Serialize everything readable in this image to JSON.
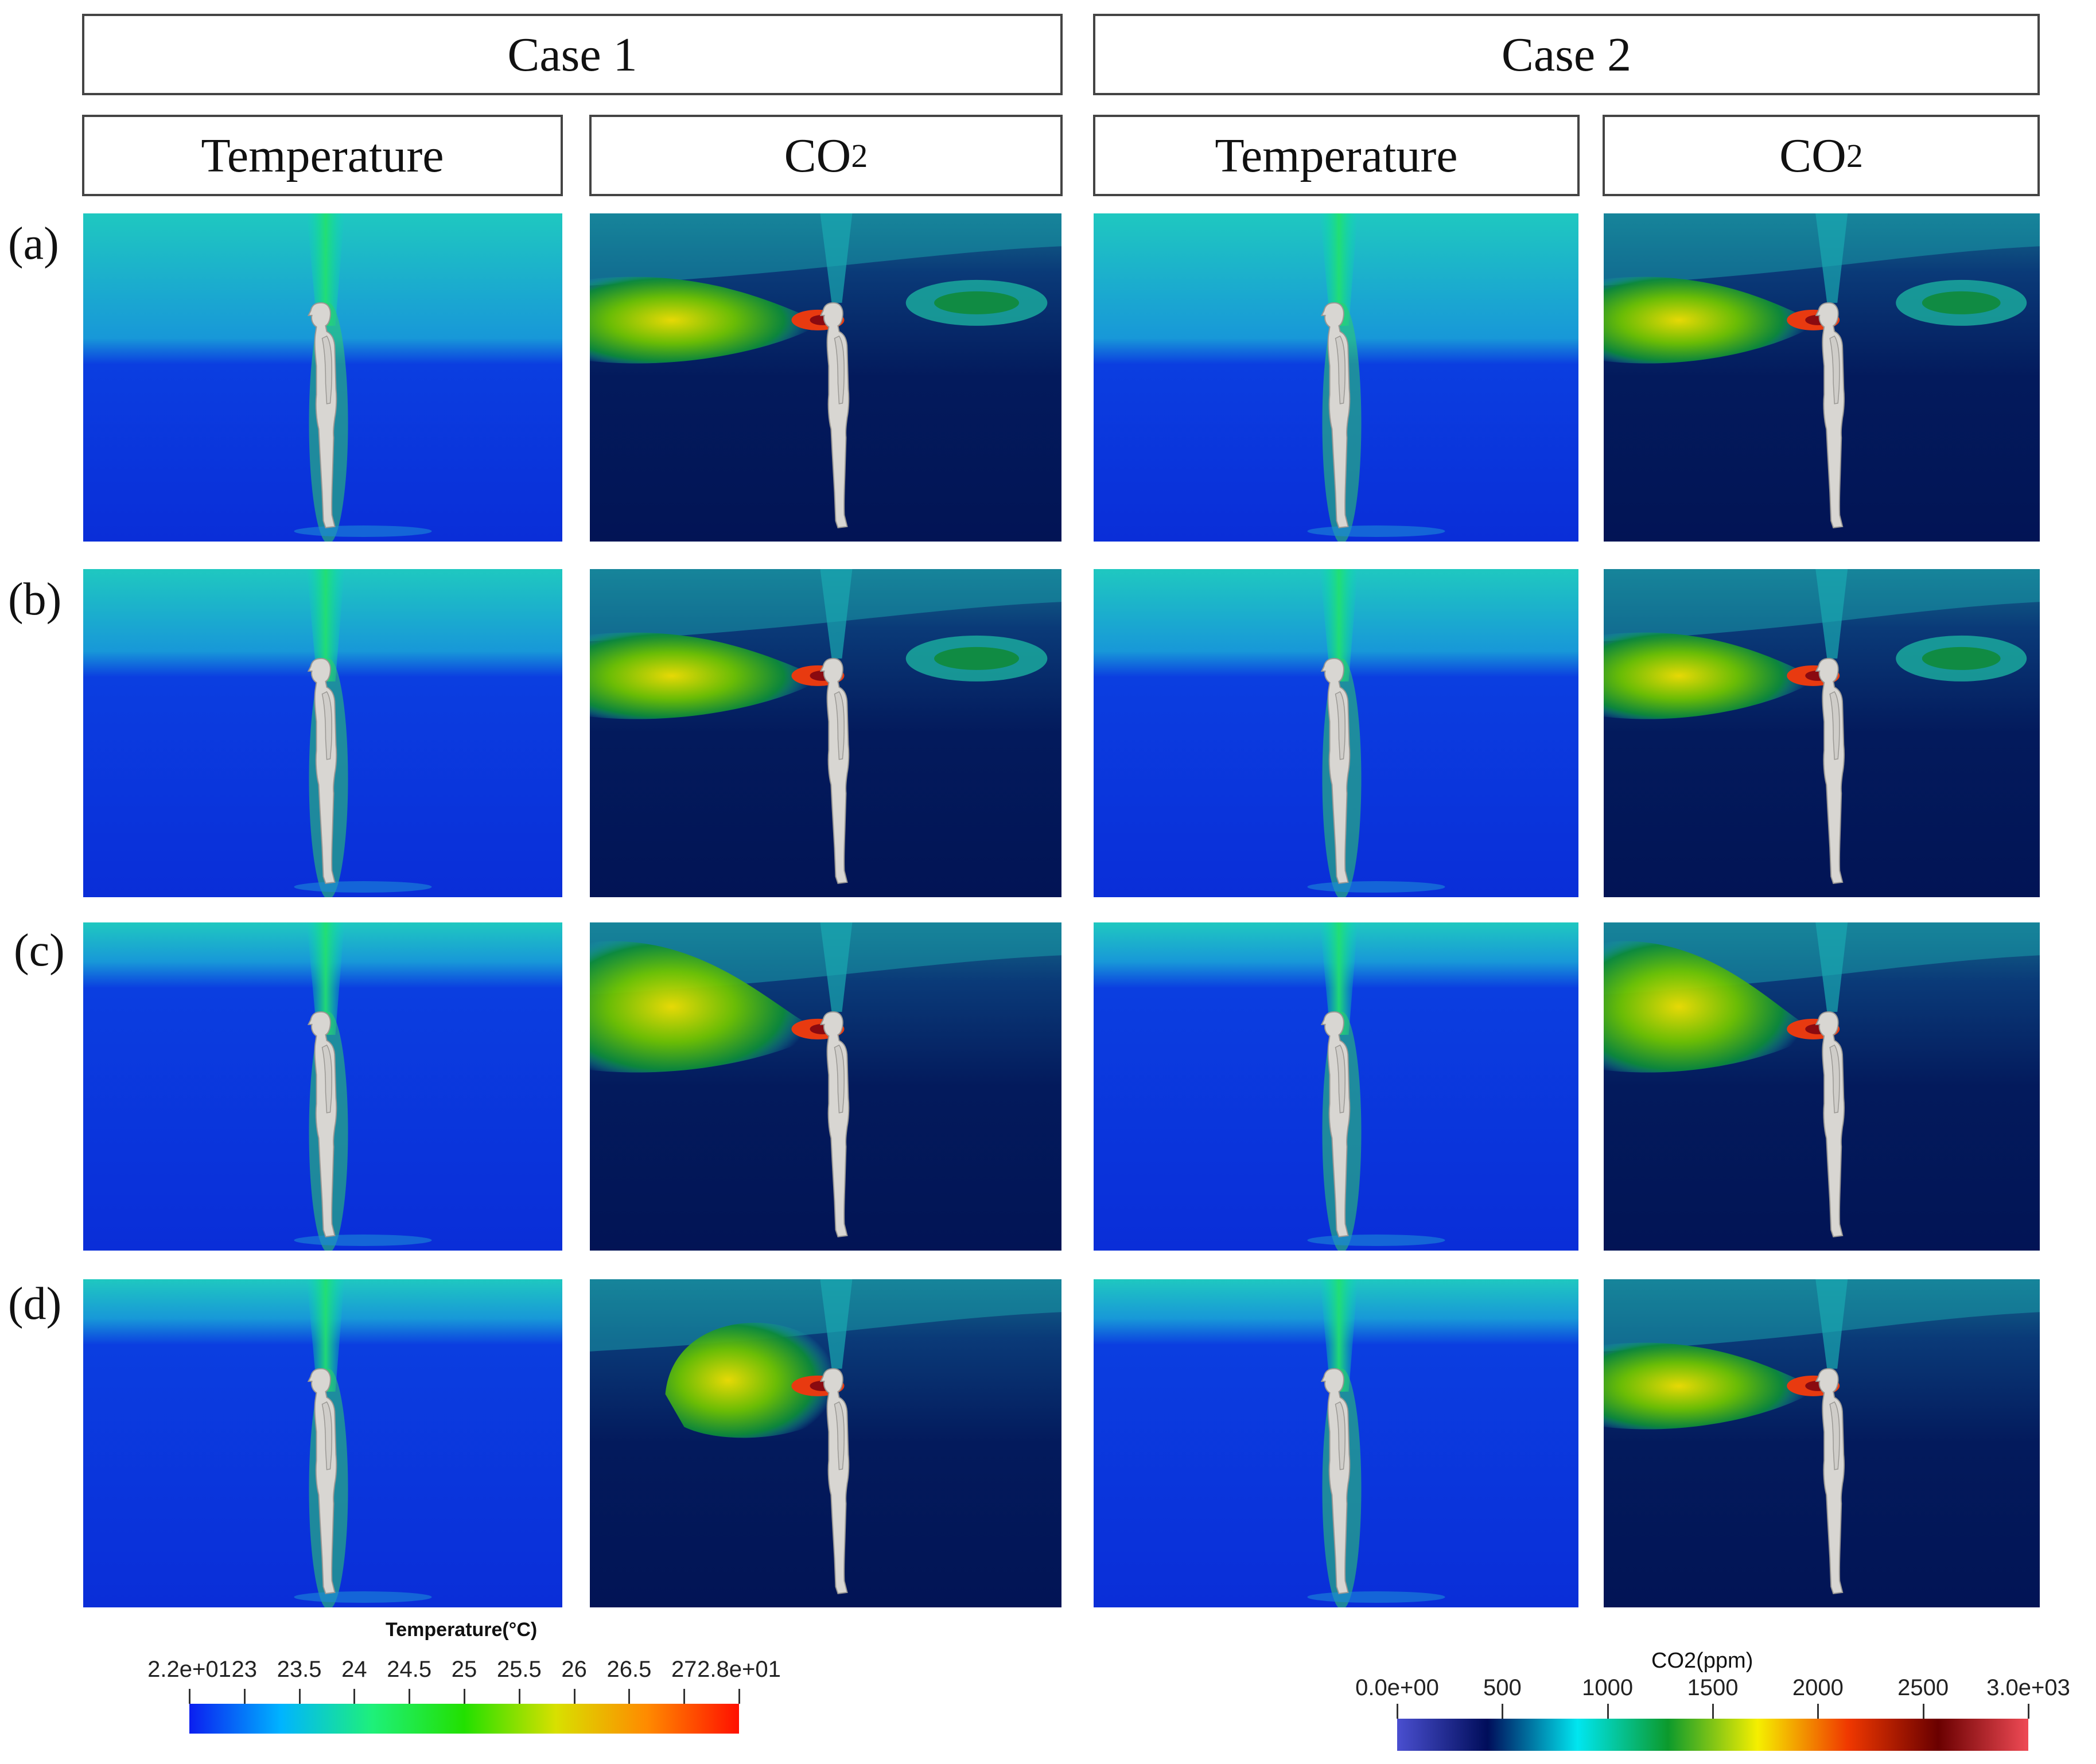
{
  "cases": [
    {
      "label": "Case 1",
      "columns": [
        {
          "title": "Temperature",
          "kind": "temperature"
        },
        {
          "title": "CO",
          "sub": "2",
          "kind": "co2"
        }
      ]
    },
    {
      "label": "Case 2",
      "columns": [
        {
          "title": "Temperature",
          "kind": "temperature"
        },
        {
          "title": "CO",
          "sub": "2",
          "kind": "co2"
        }
      ]
    }
  ],
  "rows": [
    {
      "label": "(a)",
      "plume": "calm"
    },
    {
      "label": "(b)",
      "plume": "rising"
    },
    {
      "label": "(c)",
      "plume": "spreading"
    },
    {
      "label": "(d)",
      "plume": "diffuse"
    }
  ],
  "colorbars": {
    "temperature": {
      "title": "Temperature(°C)",
      "ticks": [
        "2.2e+01",
        "23",
        "23.5",
        "24",
        "24.5",
        "25",
        "25.5",
        "26",
        "26.5",
        "27",
        "2.8e+01"
      ],
      "min": 22,
      "max": 28,
      "colors": [
        "#0b1ef0",
        "#00b4ff",
        "#1ef07a",
        "#22e000",
        "#d8e000",
        "#ff8a00",
        "#ff1000"
      ]
    },
    "co2": {
      "title": "CO2(ppm)",
      "ticks": [
        "0.0e+00",
        "500",
        "1000",
        "1500",
        "2000",
        "2500",
        "3.0e+03"
      ],
      "min": 0,
      "max": 3000,
      "colors": [
        "#4a4fd0",
        "#000d5a",
        "#00e6f0",
        "#0c9a2c",
        "#f5ef00",
        "#f03800",
        "#6a0000",
        "#ef4a55"
      ]
    }
  }
}
